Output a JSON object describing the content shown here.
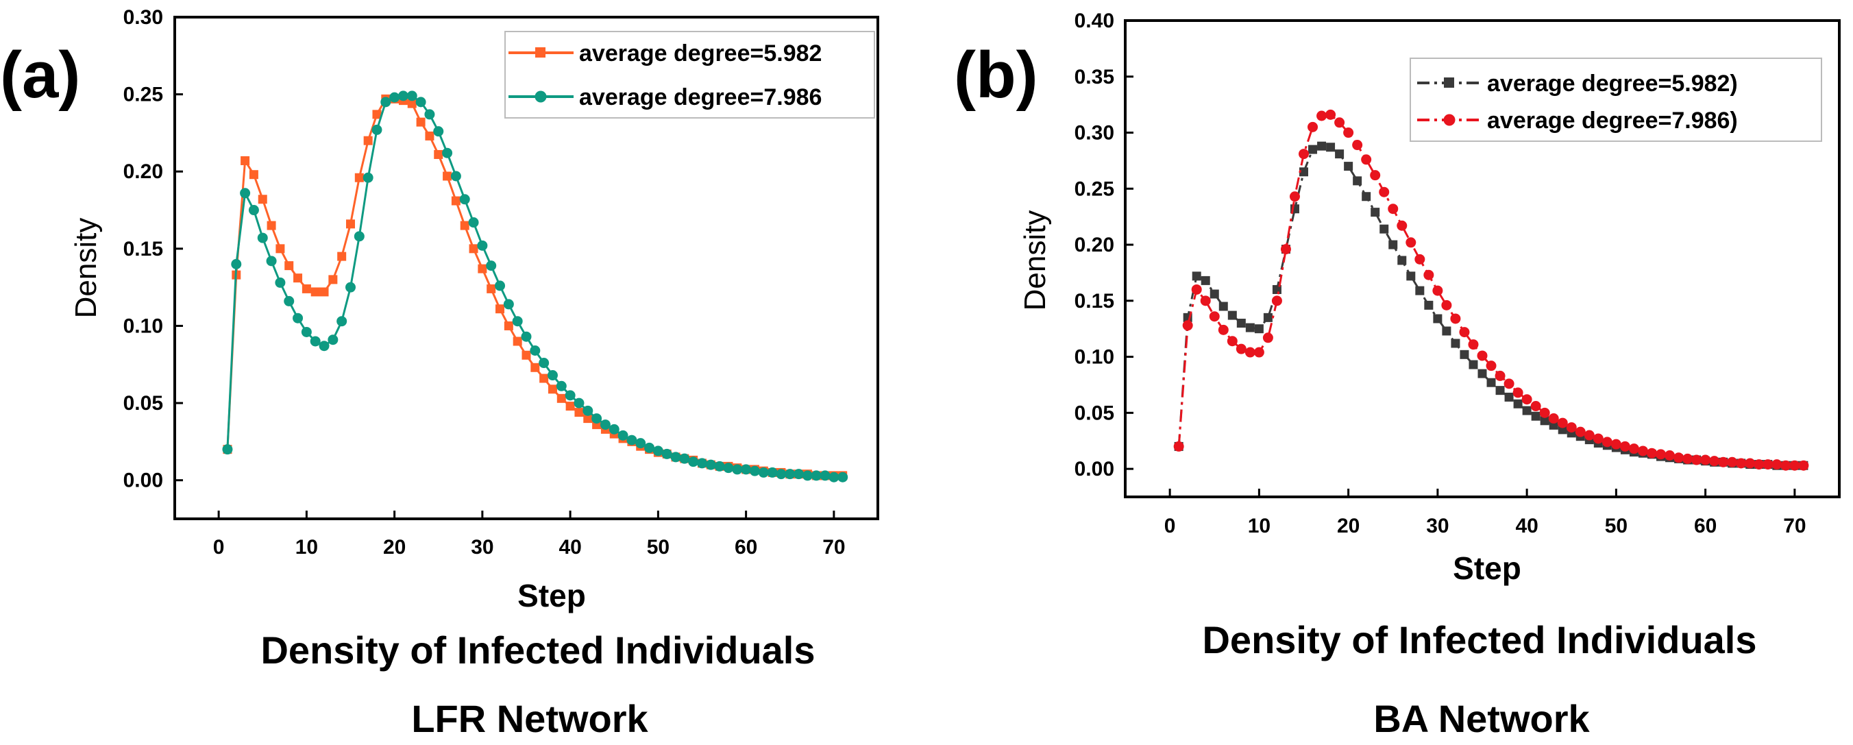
{
  "chart_data": [
    {
      "type": "line",
      "panel_label": "(a)",
      "title": "Density of Infected Individuals",
      "subtitle": "LFR Network",
      "xlabel": "Step",
      "ylabel": "Density",
      "xlim": [
        -5,
        75
      ],
      "ylim": [
        -0.025,
        0.3
      ],
      "xticks": [
        "0",
        "10",
        "20",
        "30",
        "40",
        "50",
        "60",
        "70"
      ],
      "yticks": [
        "0.00",
        "0.05",
        "0.10",
        "0.15",
        "0.20",
        "0.25",
        "0.30"
      ],
      "legend_position": "top-right",
      "series": [
        {
          "name": "average degree=5.982",
          "color": "#ff6228",
          "marker": "square",
          "line": "solid",
          "x": [
            1,
            2,
            3,
            4,
            5,
            6,
            7,
            8,
            9,
            10,
            11,
            12,
            13,
            14,
            15,
            16,
            17,
            18,
            19,
            20,
            21,
            22,
            23,
            24,
            25,
            26,
            27,
            28,
            29,
            30,
            31,
            32,
            33,
            34,
            35,
            36,
            37,
            38,
            39,
            40,
            41,
            42,
            43,
            44,
            45,
            46,
            47,
            48,
            49,
            50,
            51,
            52,
            53,
            54,
            55,
            56,
            57,
            58,
            59,
            60,
            61,
            62,
            63,
            64,
            65,
            66,
            67,
            68,
            69,
            70,
            71
          ],
          "values": [
            0.02,
            0.133,
            0.207,
            0.198,
            0.182,
            0.165,
            0.15,
            0.139,
            0.131,
            0.124,
            0.122,
            0.122,
            0.13,
            0.145,
            0.166,
            0.196,
            0.22,
            0.237,
            0.247,
            0.247,
            0.246,
            0.244,
            0.232,
            0.223,
            0.211,
            0.197,
            0.181,
            0.165,
            0.15,
            0.137,
            0.124,
            0.111,
            0.1,
            0.09,
            0.081,
            0.073,
            0.066,
            0.059,
            0.053,
            0.048,
            0.044,
            0.04,
            0.036,
            0.033,
            0.03,
            0.027,
            0.025,
            0.022,
            0.02,
            0.018,
            0.017,
            0.015,
            0.014,
            0.013,
            0.011,
            0.01,
            0.009,
            0.009,
            0.008,
            0.007,
            0.007,
            0.006,
            0.005,
            0.005,
            0.004,
            0.004,
            0.004,
            0.003,
            0.003,
            0.003,
            0.003
          ]
        },
        {
          "name": "average degree=7.986",
          "color": "#0e9a82",
          "marker": "circle",
          "line": "solid",
          "x": [
            1,
            2,
            3,
            4,
            5,
            6,
            7,
            8,
            9,
            10,
            11,
            12,
            13,
            14,
            15,
            16,
            17,
            18,
            19,
            20,
            21,
            22,
            23,
            24,
            25,
            26,
            27,
            28,
            29,
            30,
            31,
            32,
            33,
            34,
            35,
            36,
            37,
            38,
            39,
            40,
            41,
            42,
            43,
            44,
            45,
            46,
            47,
            48,
            49,
            50,
            51,
            52,
            53,
            54,
            55,
            56,
            57,
            58,
            59,
            60,
            61,
            62,
            63,
            64,
            65,
            66,
            67,
            68,
            69,
            70,
            71
          ],
          "values": [
            0.02,
            0.14,
            0.186,
            0.175,
            0.157,
            0.142,
            0.128,
            0.116,
            0.105,
            0.096,
            0.09,
            0.087,
            0.091,
            0.103,
            0.125,
            0.158,
            0.196,
            0.227,
            0.245,
            0.248,
            0.249,
            0.249,
            0.245,
            0.237,
            0.226,
            0.212,
            0.197,
            0.182,
            0.167,
            0.152,
            0.139,
            0.126,
            0.114,
            0.103,
            0.093,
            0.084,
            0.076,
            0.068,
            0.061,
            0.055,
            0.05,
            0.045,
            0.04,
            0.036,
            0.033,
            0.029,
            0.026,
            0.024,
            0.021,
            0.019,
            0.017,
            0.015,
            0.014,
            0.012,
            0.011,
            0.01,
            0.009,
            0.008,
            0.007,
            0.007,
            0.006,
            0.005,
            0.005,
            0.004,
            0.004,
            0.004,
            0.003,
            0.003,
            0.003,
            0.002,
            0.002
          ]
        }
      ]
    },
    {
      "type": "line",
      "panel_label": "(b)",
      "title": "Density of Infected Individuals",
      "subtitle": "BA Network",
      "xlabel": "Step",
      "ylabel": "Density",
      "xlim": [
        -5,
        75
      ],
      "ylim": [
        -0.025,
        0.4
      ],
      "xticks": [
        "0",
        "10",
        "20",
        "30",
        "40",
        "50",
        "60",
        "70"
      ],
      "yticks": [
        "0.00",
        "0.05",
        "0.10",
        "0.15",
        "0.20",
        "0.25",
        "0.30",
        "0.35",
        "0.40"
      ],
      "legend_position": "top-right",
      "series": [
        {
          "name": "average degree=5.982)",
          "color": "#3a3a3a",
          "marker": "square",
          "line": "dash-dot",
          "x": [
            1,
            2,
            3,
            4,
            5,
            6,
            7,
            8,
            9,
            10,
            11,
            12,
            13,
            14,
            15,
            16,
            17,
            18,
            19,
            20,
            21,
            22,
            23,
            24,
            25,
            26,
            27,
            28,
            29,
            30,
            31,
            32,
            33,
            34,
            35,
            36,
            37,
            38,
            39,
            40,
            41,
            42,
            43,
            44,
            45,
            46,
            47,
            48,
            49,
            50,
            51,
            52,
            53,
            54,
            55,
            56,
            57,
            58,
            59,
            60,
            61,
            62,
            63,
            64,
            65,
            66,
            67,
            68,
            69,
            70,
            71
          ],
          "values": [
            0.02,
            0.135,
            0.172,
            0.168,
            0.156,
            0.145,
            0.137,
            0.13,
            0.126,
            0.125,
            0.135,
            0.16,
            0.196,
            0.232,
            0.265,
            0.285,
            0.288,
            0.287,
            0.281,
            0.27,
            0.257,
            0.243,
            0.229,
            0.214,
            0.2,
            0.186,
            0.172,
            0.159,
            0.146,
            0.134,
            0.123,
            0.112,
            0.102,
            0.093,
            0.085,
            0.077,
            0.07,
            0.064,
            0.058,
            0.052,
            0.047,
            0.043,
            0.039,
            0.035,
            0.032,
            0.029,
            0.026,
            0.023,
            0.021,
            0.019,
            0.017,
            0.015,
            0.014,
            0.013,
            0.011,
            0.01,
            0.009,
            0.008,
            0.008,
            0.007,
            0.006,
            0.006,
            0.005,
            0.005,
            0.004,
            0.004,
            0.004,
            0.003,
            0.003,
            0.003,
            0.003
          ]
        },
        {
          "name": "average degree=7.986)",
          "color": "#e8141e",
          "marker": "circle",
          "line": "dash-dot",
          "x": [
            1,
            2,
            3,
            4,
            5,
            6,
            7,
            8,
            9,
            10,
            11,
            12,
            13,
            14,
            15,
            16,
            17,
            18,
            19,
            20,
            21,
            22,
            23,
            24,
            25,
            26,
            27,
            28,
            29,
            30,
            31,
            32,
            33,
            34,
            35,
            36,
            37,
            38,
            39,
            40,
            41,
            42,
            43,
            44,
            45,
            46,
            47,
            48,
            49,
            50,
            51,
            52,
            53,
            54,
            55,
            56,
            57,
            58,
            59,
            60,
            61,
            62,
            63,
            64,
            65,
            66,
            67,
            68,
            69,
            70,
            71
          ],
          "values": [
            0.02,
            0.128,
            0.16,
            0.15,
            0.136,
            0.124,
            0.114,
            0.107,
            0.104,
            0.104,
            0.117,
            0.15,
            0.196,
            0.243,
            0.281,
            0.305,
            0.315,
            0.316,
            0.309,
            0.3,
            0.289,
            0.276,
            0.262,
            0.247,
            0.232,
            0.217,
            0.202,
            0.187,
            0.173,
            0.159,
            0.146,
            0.134,
            0.122,
            0.111,
            0.101,
            0.092,
            0.083,
            0.076,
            0.068,
            0.062,
            0.056,
            0.05,
            0.045,
            0.041,
            0.037,
            0.033,
            0.03,
            0.027,
            0.024,
            0.022,
            0.02,
            0.018,
            0.016,
            0.014,
            0.013,
            0.012,
            0.01,
            0.009,
            0.008,
            0.008,
            0.007,
            0.006,
            0.006,
            0.005,
            0.005,
            0.004,
            0.004,
            0.004,
            0.003,
            0.003,
            0.003
          ]
        }
      ]
    }
  ]
}
